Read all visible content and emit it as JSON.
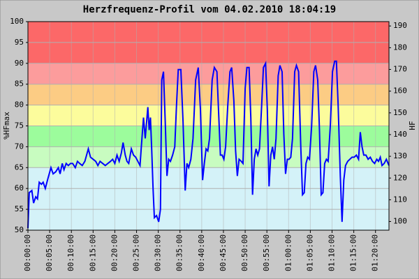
{
  "chart_data": {
    "type": "line",
    "title": "Herzfrequenz-Profil vom 04.02.2010 18:04:19",
    "ylabel": "%HFmax",
    "y2label": "HF",
    "color": "#0000ff",
    "grid": true,
    "xlim": [
      0,
      83.1
    ],
    "ylim": [
      50,
      100
    ],
    "y2lim": [
      96,
      192
    ],
    "yticks": [
      50,
      55,
      60,
      65,
      70,
      75,
      80,
      85,
      90,
      95,
      100
    ],
    "y2ticks": [
      100,
      110,
      120,
      130,
      140,
      150,
      160,
      170,
      180,
      190
    ],
    "xticks": [
      {
        "value": 0,
        "label": "00:00:00"
      },
      {
        "value": 5,
        "label": "00:05:00"
      },
      {
        "value": 10,
        "label": "00:10:00"
      },
      {
        "value": 15,
        "label": "00:15:00"
      },
      {
        "value": 20,
        "label": "00:20:00"
      },
      {
        "value": 25,
        "label": "00:25:00"
      },
      {
        "value": 30,
        "label": "00:30:00"
      },
      {
        "value": 35,
        "label": "00:35:00"
      },
      {
        "value": 40,
        "label": "00:40:00"
      },
      {
        "value": 45,
        "label": "00:45:00"
      },
      {
        "value": 50,
        "label": "00:50:00"
      },
      {
        "value": 55,
        "label": "00:55:00"
      },
      {
        "value": 60,
        "label": "01:00:00"
      },
      {
        "value": 65,
        "label": "01:05:00"
      },
      {
        "value": 70,
        "label": "01:10:00"
      },
      {
        "value": 75,
        "label": "01:15:00"
      },
      {
        "value": 80,
        "label": "01:20:00"
      }
    ],
    "zones": [
      {
        "from": 50,
        "to": 65,
        "color": "#d4f2f8"
      },
      {
        "from": 65,
        "to": 70,
        "color": "#c8fcc0"
      },
      {
        "from": 70,
        "to": 75,
        "color": "#9cfc9c"
      },
      {
        "from": 75,
        "to": 80,
        "color": "#fcfc9c"
      },
      {
        "from": 80,
        "to": 85,
        "color": "#fccc84"
      },
      {
        "from": 85,
        "to": 90,
        "color": "#fc9c9c"
      },
      {
        "from": 90,
        "to": 100,
        "color": "#fc6868"
      }
    ],
    "x": [
      0,
      0.3,
      0.9,
      1.3,
      1.8,
      2.2,
      2.6,
      3.1,
      3.5,
      4.0,
      4.5,
      5.3,
      5.8,
      6.4,
      7.0,
      7.4,
      7.9,
      8.3,
      8.8,
      9.3,
      9.8,
      10.3,
      10.9,
      11.4,
      11.9,
      12.5,
      13.1,
      13.9,
      14.4,
      15.0,
      15.6,
      16.1,
      16.6,
      17.2,
      17.8,
      18.4,
      19.0,
      19.5,
      20.0,
      20.5,
      21.0,
      21.5,
      21.9,
      22.4,
      22.8,
      23.2,
      23.8,
      24.3,
      24.8,
      25.3,
      25.8,
      26.1,
      26.6,
      27.0,
      27.6,
      27.9,
      28.2,
      28.5,
      28.8,
      29.1,
      29.6,
      30.1,
      30.5,
      30.8,
      31.2,
      31.6,
      32.0,
      32.4,
      32.8,
      33.3,
      33.8,
      34.2,
      34.6,
      35.2,
      35.7,
      36.2,
      36.6,
      37.0,
      37.5,
      38.0,
      38.6,
      39.2,
      39.7,
      40.2,
      40.6,
      41.0,
      41.4,
      41.8,
      42.4,
      42.9,
      43.5,
      43.9,
      44.3,
      44.7,
      45.1,
      45.5,
      46.0,
      46.5,
      46.9,
      47.4,
      47.8,
      48.2,
      48.6,
      49.1,
      49.5,
      50.0,
      50.4,
      50.9,
      51.3,
      51.7,
      52.1,
      52.5,
      52.9,
      53.3,
      53.8,
      54.2,
      54.7,
      55.1,
      55.5,
      55.9,
      56.3,
      56.7,
      57.1,
      57.6,
      58.0,
      58.5,
      58.9,
      59.3,
      59.7,
      60.1,
      60.5,
      60.9,
      61.4,
      61.8,
      62.3,
      62.8,
      63.2,
      63.6,
      64.0,
      64.4,
      64.8,
      65.3,
      65.8,
      66.2,
      66.7,
      67.1,
      67.5,
      67.9,
      68.3,
      68.7,
      69.1,
      69.6,
      70.1,
      70.6,
      71.0,
      71.4,
      71.9,
      72.3,
      72.7,
      73.1,
      73.6,
      74.1,
      74.6,
      75.1,
      75.6,
      76.1,
      76.5,
      76.9,
      77.3,
      77.8,
      78.3,
      78.8,
      79.3,
      79.8,
      80.3,
      80.7,
      81.1,
      81.5,
      82.0,
      82.5,
      83.1
    ],
    "values": [
      50.5,
      59,
      59.5,
      56.5,
      58,
      57.5,
      61.5,
      61,
      61.5,
      60,
      62,
      65,
      63.5,
      64,
      65,
      63.5,
      66,
      64.5,
      66,
      65.5,
      66,
      66,
      65,
      66.5,
      66,
      65.5,
      66.5,
      69.5,
      67.5,
      67,
      66.5,
      65.5,
      66.5,
      66,
      65.5,
      66,
      66.5,
      67,
      66,
      68,
      66.5,
      68.5,
      71,
      68,
      66.5,
      66,
      69.5,
      68,
      67.5,
      66.5,
      65.5,
      70,
      77,
      72,
      79.5,
      74,
      77,
      69,
      60,
      53,
      53.5,
      52,
      55,
      86,
      88,
      76,
      63,
      67,
      66.5,
      68,
      70,
      80,
      88.5,
      88.5,
      76,
      59.5,
      66,
      65,
      67,
      72,
      86,
      89,
      79,
      62,
      66,
      69.5,
      69,
      72,
      86,
      89,
      88,
      78,
      68,
      68,
      67,
      70,
      80,
      88,
      89,
      81,
      69,
      63,
      67,
      66.5,
      66,
      84,
      89,
      89,
      77,
      58.5,
      67,
      69.5,
      68,
      69.5,
      80,
      89,
      90,
      79,
      60.5,
      68,
      70,
      67,
      72,
      87,
      89.5,
      88,
      73,
      63.5,
      67,
      67,
      67.5,
      72,
      88,
      89.5,
      88,
      70,
      58.5,
      59,
      66,
      67.5,
      67,
      75,
      88,
      89.5,
      86,
      74,
      58.5,
      59,
      66,
      67,
      66.5,
      75,
      88,
      90.5,
      90.5,
      80,
      63,
      52,
      62,
      65.5,
      66.5,
      67,
      67.5,
      67.5,
      68,
      67,
      73.5,
      70,
      68,
      68,
      67,
      67.5,
      66.5,
      66,
      67,
      66.5,
      67.5,
      65.5,
      66,
      67,
      65.5
    ]
  }
}
